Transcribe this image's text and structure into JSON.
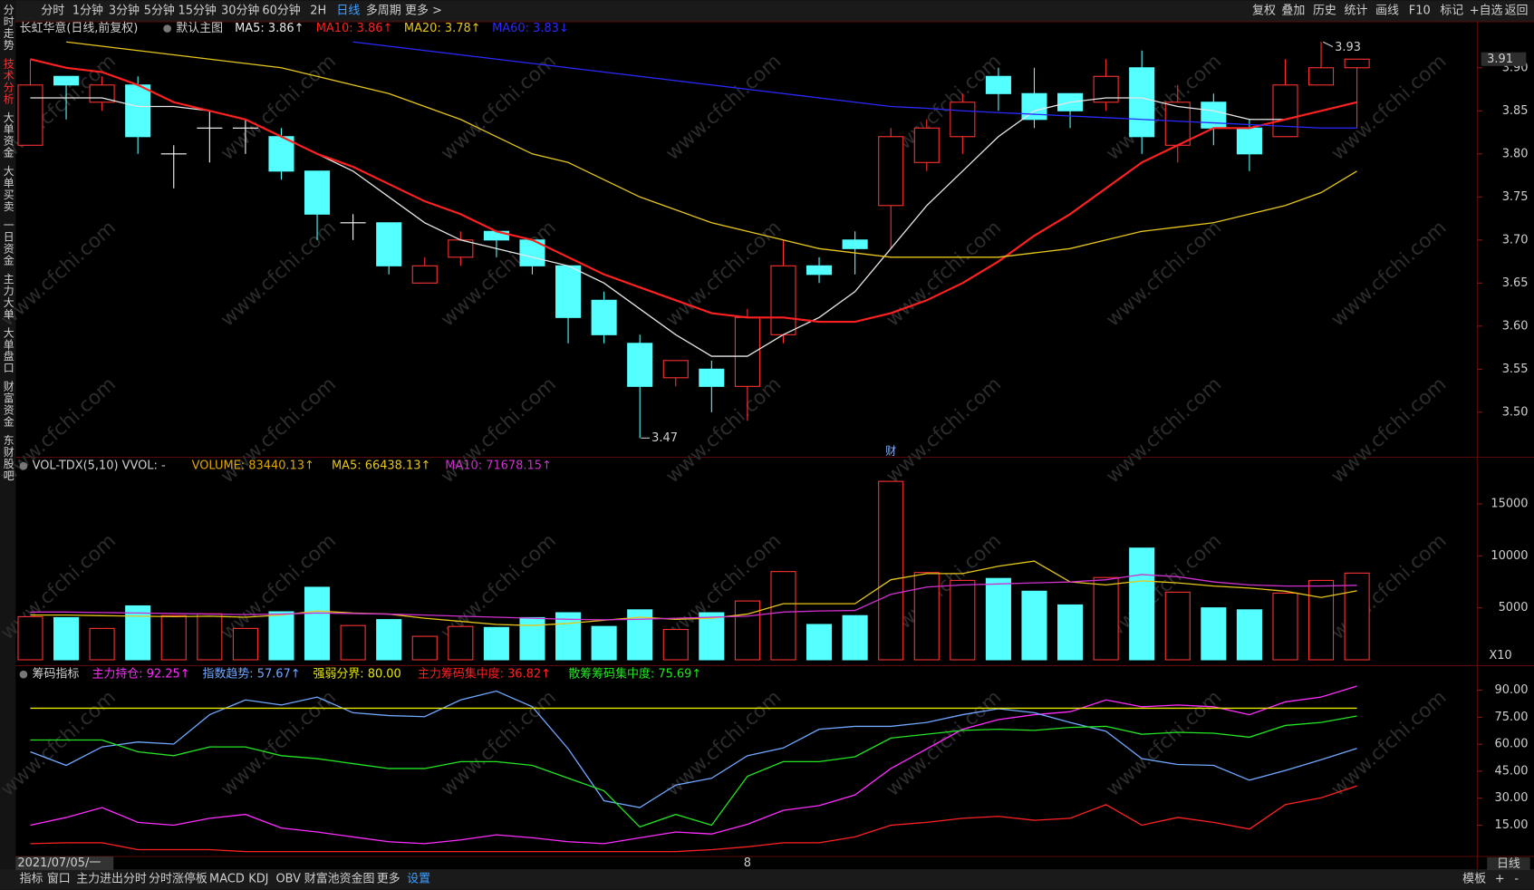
{
  "toolbar": {
    "left": [
      "分时",
      "1分钟",
      "3分钟",
      "5分钟",
      "15分钟",
      "30分钟",
      "60分钟",
      "2H",
      "日线",
      "多周期",
      "更多 >"
    ],
    "active": "日线",
    "right": [
      "复权",
      "叠加",
      "历史",
      "统计",
      "画线",
      "F10",
      "标记",
      "+自选",
      "返回"
    ]
  },
  "sidebar": {
    "tabs": [
      "分时走势",
      "技术分析",
      "大单资金",
      "大单买卖",
      "一日资金",
      "主力大单",
      "大单盘口",
      "财富资金",
      "东财股吧"
    ],
    "active": "技术分析"
  },
  "bottom_bar": {
    "tabs": [
      "指标",
      "窗口",
      "主力进出分时",
      "分时涨停板",
      "MACD",
      "KDJ",
      "OBV",
      "财富池资金图",
      "更多",
      "设置"
    ],
    "right": [
      "模板",
      "+",
      "-"
    ],
    "period": "日线"
  },
  "watermark": "www.cfchi.com",
  "chart_data": [
    {
      "type": "candlestick",
      "title": "长虹华意(日线,前复权)",
      "subtitle": "默认主图",
      "up_color": "#ff3232",
      "down_color": "#54ffff",
      "flat_color": "#ffffff",
      "open": [
        3.81,
        3.89,
        3.86,
        3.88,
        3.8,
        3.83,
        3.83,
        3.82,
        3.78,
        3.72,
        3.72,
        3.65,
        3.68,
        3.71,
        3.7,
        3.67,
        3.63,
        3.58,
        3.54,
        3.55,
        3.53,
        3.59,
        3.67,
        3.7,
        3.74,
        3.79,
        3.82,
        3.89,
        3.87,
        3.87,
        3.86,
        3.9,
        3.81,
        3.86,
        3.83,
        3.82,
        3.88,
        3.9
      ],
      "high": [
        3.91,
        3.89,
        3.89,
        3.89,
        3.81,
        3.85,
        3.84,
        3.83,
        3.78,
        3.73,
        3.72,
        3.68,
        3.71,
        3.71,
        3.7,
        3.67,
        3.64,
        3.59,
        3.56,
        3.56,
        3.62,
        3.7,
        3.68,
        3.71,
        3.83,
        3.84,
        3.87,
        3.9,
        3.9,
        3.87,
        3.91,
        3.92,
        3.88,
        3.87,
        3.84,
        3.91,
        3.93,
        3.91
      ],
      "low": [
        3.81,
        3.84,
        3.85,
        3.8,
        3.76,
        3.79,
        3.8,
        3.77,
        3.7,
        3.7,
        3.66,
        3.65,
        3.67,
        3.68,
        3.66,
        3.58,
        3.58,
        3.47,
        3.53,
        3.5,
        3.49,
        3.58,
        3.65,
        3.66,
        3.69,
        3.78,
        3.8,
        3.85,
        3.83,
        3.83,
        3.85,
        3.8,
        3.79,
        3.81,
        3.78,
        3.82,
        3.88,
        3.83
      ],
      "close": [
        3.88,
        3.88,
        3.88,
        3.82,
        3.8,
        3.83,
        3.83,
        3.78,
        3.73,
        3.72,
        3.67,
        3.67,
        3.7,
        3.7,
        3.67,
        3.61,
        3.59,
        3.53,
        3.56,
        3.53,
        3.61,
        3.67,
        3.66,
        3.69,
        3.82,
        3.83,
        3.86,
        3.87,
        3.84,
        3.85,
        3.89,
        3.82,
        3.86,
        3.83,
        3.8,
        3.88,
        3.9,
        3.91
      ],
      "series": [
        {
          "name": "MA5: 3.86↑",
          "color": "#e8e8e8",
          "values": [
            3.865,
            3.865,
            3.865,
            3.855,
            3.855,
            3.85,
            3.84,
            3.82,
            3.8,
            3.78,
            3.75,
            3.72,
            3.7,
            3.69,
            3.68,
            3.67,
            3.65,
            3.62,
            3.59,
            3.565,
            3.565,
            3.59,
            3.61,
            3.64,
            3.69,
            3.74,
            3.78,
            3.82,
            3.85,
            3.86,
            3.865,
            3.865,
            3.855,
            3.85,
            3.84,
            3.84,
            3.85,
            3.86
          ]
        },
        {
          "name": "MA10: 3.86↑",
          "color": "#ff2020",
          "values": [
            3.91,
            3.9,
            3.895,
            3.88,
            3.86,
            3.85,
            3.84,
            3.82,
            3.8,
            3.785,
            3.765,
            3.745,
            3.73,
            3.71,
            3.7,
            3.68,
            3.66,
            3.645,
            3.63,
            3.615,
            3.61,
            3.61,
            3.605,
            3.605,
            3.615,
            3.63,
            3.65,
            3.675,
            3.705,
            3.73,
            3.76,
            3.79,
            3.81,
            3.83,
            3.83,
            3.84,
            3.85,
            3.86
          ]
        },
        {
          "name": "MA20: 3.78↑",
          "color": "#e6c619",
          "values": [
            null,
            3.93,
            3.925,
            3.92,
            3.915,
            3.91,
            3.905,
            3.9,
            3.89,
            3.88,
            3.87,
            3.855,
            3.84,
            3.82,
            3.8,
            3.79,
            3.77,
            3.75,
            3.735,
            3.72,
            3.71,
            3.7,
            3.69,
            3.685,
            3.68,
            3.68,
            3.68,
            3.68,
            3.685,
            3.69,
            3.7,
            3.71,
            3.715,
            3.72,
            3.73,
            3.74,
            3.755,
            3.78
          ]
        },
        {
          "name": "MA60: 3.83↓",
          "color": "#2a2aff",
          "values": [
            null,
            null,
            null,
            null,
            null,
            null,
            null,
            null,
            null,
            3.93,
            3.925,
            3.92,
            3.915,
            3.91,
            3.905,
            3.9,
            3.895,
            3.89,
            3.885,
            3.88,
            3.875,
            3.87,
            3.865,
            3.86,
            3.855,
            3.853,
            3.85,
            3.848,
            3.846,
            3.844,
            3.842,
            3.84,
            3.838,
            3.836,
            3.834,
            3.832,
            3.83,
            3.83
          ]
        }
      ],
      "ylim": [
        3.45,
        3.95
      ],
      "yticks": [
        {
          "value": 3.5,
          "label": "3.50"
        },
        {
          "value": 3.55,
          "label": "3.55"
        },
        {
          "value": 3.6,
          "label": "3.60"
        },
        {
          "value": 3.65,
          "label": "3.65"
        },
        {
          "value": 3.7,
          "label": "3.70"
        },
        {
          "value": 3.75,
          "label": "3.75"
        },
        {
          "value": 3.8,
          "label": "3.80"
        },
        {
          "value": 3.85,
          "label": "3.85"
        },
        {
          "value": 3.9,
          "label": "3.90"
        }
      ],
      "high_label": "3.93",
      "low_label": "3.47",
      "last_label": "3.91",
      "event_marks": [
        null,
        null,
        null,
        null,
        null,
        null,
        null,
        null,
        null,
        null,
        null,
        null,
        null,
        null,
        null,
        null,
        null,
        null,
        null,
        null,
        null,
        null,
        null,
        null,
        "财",
        null,
        null,
        null,
        null,
        null,
        null,
        null,
        null,
        null,
        null,
        null,
        null,
        null
      ]
    },
    {
      "type": "bar",
      "title": "VOL-TDX(5,10) VVOL: -",
      "unit_label": "X10",
      "series": [
        {
          "name": "VOLUME: 83440.13↑",
          "color": "#e0a800",
          "values": [
            4150,
            4060,
            3020,
            5190,
            4250,
            4430,
            3020,
            4620,
            6980,
            3300,
            3870,
            2260,
            3210,
            3110,
            4060,
            4530,
            3210,
            4810,
            2920,
            4530,
            5660,
            8490,
            3400,
            4250,
            17170,
            8400,
            7640,
            7830,
            6600,
            5280,
            7920,
            10750,
            6510,
            5000,
            4810,
            6420,
            7640,
            8344
          ]
        },
        {
          "name": "MA5: 66438.13↑",
          "color": "#e6c619",
          "values": [
            4300,
            4300,
            4250,
            4200,
            4150,
            4200,
            4100,
            4300,
            4700,
            4500,
            4400,
            4000,
            3700,
            3400,
            3300,
            3500,
            3800,
            4100,
            3900,
            4000,
            4400,
            5400,
            5400,
            5400,
            7700,
            8300,
            8300,
            9000,
            9500,
            7500,
            7200,
            7600,
            7400,
            7100,
            6900,
            6600,
            6000,
            6644
          ]
        },
        {
          "name": "MA10: 71678.15↑",
          "color": "#d030d0",
          "values": [
            4600,
            4600,
            4550,
            4500,
            4450,
            4400,
            4350,
            4400,
            4500,
            4450,
            4400,
            4300,
            4200,
            4100,
            4000,
            3900,
            3850,
            3900,
            4000,
            4100,
            4200,
            4600,
            4700,
            4750,
            6300,
            7000,
            7200,
            7300,
            7400,
            7500,
            7700,
            8200,
            8000,
            7500,
            7200,
            7100,
            7100,
            7168
          ]
        }
      ],
      "ylim": [
        0,
        19400
      ],
      "yticks": [
        5000,
        10000,
        15000
      ]
    },
    {
      "type": "line",
      "title": "筹码指标",
      "series": [
        {
          "name": "主力持仓: 92.25↑",
          "color": "#ff2cff",
          "values": [
            15.0,
            19.3,
            24.8,
            16.6,
            15.0,
            18.8,
            21.0,
            13.4,
            11.2,
            8.5,
            5.8,
            4.7,
            6.8,
            9.6,
            8.0,
            5.8,
            4.7,
            8.0,
            11.2,
            10.1,
            15.5,
            23.2,
            25.9,
            31.8,
            46.5,
            57.4,
            68.3,
            73.7,
            76.4,
            78.0,
            84.6,
            80.8,
            81.8,
            80.8,
            76.4,
            83.5,
            86.2,
            92.25
          ]
        },
        {
          "name": "指数趋势: 57.67↑",
          "color": "#6fa8ff",
          "values": [
            55.8,
            48.2,
            58.5,
            61.2,
            60.1,
            76.4,
            84.6,
            81.8,
            86.2,
            77.5,
            75.9,
            75.3,
            84.6,
            89.5,
            80.8,
            57.4,
            28.6,
            24.8,
            37.3,
            41.1,
            53.6,
            57.9,
            68.3,
            69.9,
            69.9,
            72.1,
            76.4,
            79.7,
            77.5,
            72.1,
            67.2,
            52.0,
            48.7,
            48.2,
            40.0,
            45.4,
            51.4,
            57.67
          ]
        },
        {
          "name": "强弱分界: 80.00",
          "color": "#e6e600",
          "values": [
            80,
            80,
            80,
            80,
            80,
            80,
            80,
            80,
            80,
            80,
            80,
            80,
            80,
            80,
            80,
            80,
            80,
            80,
            80,
            80,
            80,
            80,
            80,
            80,
            80,
            80,
            80,
            80,
            80,
            80,
            80,
            80,
            80,
            80,
            80,
            80,
            80,
            80
          ]
        },
        {
          "name": "主力筹码集中度: 36.82↑",
          "color": "#ff2020",
          "values": [
            4.7,
            5.2,
            5.2,
            1.4,
            1.4,
            1.4,
            0.3,
            0.3,
            0.3,
            0.3,
            0.3,
            0.3,
            0.3,
            0.3,
            0.3,
            0.3,
            0.3,
            0.3,
            0.3,
            1.4,
            3.0,
            5.2,
            5.2,
            8.5,
            15.0,
            16.6,
            18.8,
            19.9,
            17.7,
            18.8,
            26.4,
            15.0,
            19.3,
            16.6,
            12.8,
            26.4,
            30.2,
            36.82
          ]
        },
        {
          "name": "散筹筹码集中度: 75.69↑",
          "color": "#22e622",
          "values": [
            62.3,
            62.3,
            62.3,
            55.8,
            53.6,
            58.5,
            58.5,
            53.6,
            52.0,
            49.2,
            46.5,
            46.5,
            50.3,
            50.3,
            48.2,
            41.1,
            34.1,
            14.0,
            21.0,
            15.0,
            42.2,
            50.3,
            50.3,
            53.0,
            63.4,
            65.5,
            67.7,
            68.3,
            67.7,
            69.3,
            69.9,
            65.5,
            66.6,
            66.1,
            63.9,
            70.4,
            72.1,
            75.69
          ]
        }
      ],
      "ylim": [
        -2.4,
        98.2
      ],
      "yticks": [
        {
          "value": 15,
          "label": "15.00"
        },
        {
          "value": 30,
          "label": "30.00"
        },
        {
          "value": 45,
          "label": "45.00"
        },
        {
          "value": 60,
          "label": "60.00"
        },
        {
          "value": 75,
          "label": "75.00"
        },
        {
          "value": 90,
          "label": "90.00"
        }
      ],
      "categories": [
        null,
        null,
        null,
        null,
        null,
        null,
        null,
        null,
        null,
        null,
        null,
        null,
        null,
        null,
        null,
        null,
        null,
        null,
        null,
        null,
        "8",
        null,
        null,
        null,
        null,
        null,
        null,
        null,
        null,
        null,
        null,
        null,
        null,
        null,
        null,
        null,
        null,
        null
      ],
      "cursor_date": "2021/07/05/一"
    }
  ]
}
